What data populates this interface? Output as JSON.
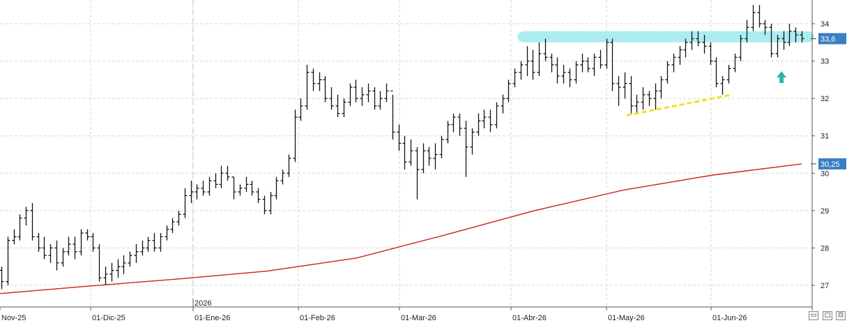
{
  "chart_data": {
    "type": "ohlc",
    "title": "",
    "xlabel": "",
    "ylabel": "",
    "ylim": [
      26.6,
      34.6
    ],
    "y_ticks": [
      "27",
      "28",
      "29",
      "30",
      "31",
      "32",
      "33",
      "34"
    ],
    "x_ticks": [
      "Nov-25",
      "01-Dic-25",
      "01-Ene-26",
      "01-Feb-26",
      "01-Mar-26",
      "01-Abr-26",
      "01-May-26",
      "01-Jun-26"
    ],
    "year_marker": "2026",
    "grid": true,
    "last_price_label": "33,6",
    "moving_average_label": "30,25",
    "colors": {
      "bars": "#111111",
      "moving_average": "#cc1f1f",
      "resistance_zone": "#a8ecef",
      "support_line": "#f2e21d",
      "arrow": "#2bb5b0",
      "badge": "#3a7fc4",
      "grid": "#d6d6d6"
    },
    "series": [
      {
        "type": "ohlc",
        "values": [
          [
            27.4,
            27.5,
            26.9,
            27.1
          ],
          [
            27.1,
            28.3,
            27.0,
            28.2
          ],
          [
            28.2,
            28.5,
            28.1,
            28.3
          ],
          [
            28.3,
            28.9,
            28.2,
            28.8
          ],
          [
            28.8,
            29.1,
            28.6,
            29.0
          ],
          [
            29.0,
            29.2,
            28.2,
            28.3
          ],
          [
            28.3,
            28.4,
            27.9,
            28.0
          ],
          [
            28.0,
            28.3,
            27.7,
            27.8
          ],
          [
            27.8,
            28.1,
            27.6,
            28.0
          ],
          [
            28.0,
            28.2,
            27.4,
            27.6
          ],
          [
            27.6,
            28.0,
            27.5,
            27.9
          ],
          [
            27.9,
            28.3,
            27.8,
            28.1
          ],
          [
            28.1,
            28.3,
            27.7,
            27.9
          ],
          [
            27.9,
            28.5,
            27.8,
            28.4
          ],
          [
            28.4,
            28.5,
            28.2,
            28.3
          ],
          [
            28.3,
            28.4,
            27.9,
            28.0
          ],
          [
            28.0,
            28.1,
            27.1,
            27.2
          ],
          [
            27.2,
            27.5,
            27.0,
            27.3
          ],
          [
            27.3,
            27.6,
            27.1,
            27.4
          ],
          [
            27.4,
            27.7,
            27.2,
            27.5
          ],
          [
            27.5,
            27.8,
            27.3,
            27.6
          ],
          [
            27.6,
            27.9,
            27.5,
            27.8
          ],
          [
            27.8,
            28.1,
            27.6,
            27.9
          ],
          [
            27.9,
            28.2,
            27.8,
            28.0
          ],
          [
            28.0,
            28.3,
            27.9,
            28.2
          ],
          [
            28.2,
            28.4,
            27.9,
            28.0
          ],
          [
            28.0,
            28.4,
            27.9,
            28.3
          ],
          [
            28.3,
            28.6,
            28.2,
            28.5
          ],
          [
            28.5,
            28.8,
            28.4,
            28.7
          ],
          [
            28.7,
            29.0,
            28.6,
            28.9
          ],
          [
            28.9,
            29.6,
            28.8,
            29.4
          ],
          [
            29.4,
            29.8,
            29.2,
            29.5
          ],
          [
            29.5,
            29.7,
            29.3,
            29.6
          ],
          [
            29.6,
            29.8,
            29.4,
            29.5
          ],
          [
            29.5,
            29.9,
            29.4,
            29.8
          ],
          [
            29.8,
            30.0,
            29.6,
            29.7
          ],
          [
            29.7,
            30.2,
            29.6,
            30.0
          ],
          [
            30.0,
            30.2,
            29.8,
            29.9
          ],
          [
            29.9,
            29.9,
            29.3,
            29.5
          ],
          [
            29.5,
            29.7,
            29.4,
            29.6
          ],
          [
            29.6,
            29.9,
            29.5,
            29.7
          ],
          [
            29.7,
            29.8,
            29.4,
            29.5
          ],
          [
            29.5,
            29.6,
            29.2,
            29.3
          ],
          [
            29.3,
            29.4,
            28.9,
            29.0
          ],
          [
            29.0,
            29.5,
            28.9,
            29.4
          ],
          [
            29.4,
            29.9,
            29.3,
            29.8
          ],
          [
            29.8,
            30.1,
            29.7,
            30.0
          ],
          [
            30.0,
            30.5,
            29.9,
            30.4
          ],
          [
            30.4,
            31.7,
            30.3,
            31.5
          ],
          [
            31.5,
            32.0,
            31.4,
            31.8
          ],
          [
            31.8,
            32.9,
            31.7,
            32.7
          ],
          [
            32.7,
            32.8,
            32.2,
            32.4
          ],
          [
            32.4,
            32.7,
            32.2,
            32.5
          ],
          [
            32.5,
            32.6,
            31.9,
            32.0
          ],
          [
            32.0,
            32.3,
            31.7,
            31.8
          ],
          [
            31.8,
            32.1,
            31.5,
            31.6
          ],
          [
            31.6,
            32.0,
            31.5,
            31.9
          ],
          [
            31.9,
            32.4,
            31.8,
            32.3
          ],
          [
            32.3,
            32.5,
            31.9,
            32.0
          ],
          [
            32.0,
            32.3,
            31.8,
            32.1
          ],
          [
            32.1,
            32.4,
            31.9,
            32.2
          ],
          [
            32.2,
            32.3,
            31.7,
            31.8
          ],
          [
            31.8,
            32.2,
            31.7,
            32.0
          ],
          [
            32.0,
            32.4,
            31.9,
            32.2
          ],
          [
            32.2,
            32.1,
            30.9,
            31.1
          ],
          [
            31.1,
            31.3,
            30.6,
            30.8
          ],
          [
            30.8,
            31.0,
            30.1,
            30.3
          ],
          [
            30.3,
            30.9,
            30.2,
            30.6
          ],
          [
            30.6,
            30.7,
            29.3,
            30.1
          ],
          [
            30.1,
            30.8,
            30.0,
            30.6
          ],
          [
            30.6,
            30.7,
            30.2,
            30.4
          ],
          [
            30.4,
            30.8,
            30.1,
            30.5
          ],
          [
            30.5,
            31.0,
            30.4,
            30.9
          ],
          [
            30.9,
            31.4,
            30.8,
            31.3
          ],
          [
            31.3,
            31.6,
            31.1,
            31.5
          ],
          [
            31.5,
            31.6,
            31.0,
            31.2
          ],
          [
            31.2,
            31.4,
            29.9,
            30.7
          ],
          [
            30.7,
            31.2,
            30.5,
            31.1
          ],
          [
            31.1,
            31.6,
            31.0,
            31.4
          ],
          [
            31.4,
            31.7,
            31.2,
            31.5
          ],
          [
            31.5,
            31.7,
            31.1,
            31.3
          ],
          [
            31.3,
            31.9,
            31.2,
            31.8
          ],
          [
            31.8,
            32.1,
            31.6,
            32.0
          ],
          [
            32.0,
            32.5,
            31.9,
            32.4
          ],
          [
            32.4,
            32.8,
            32.3,
            32.7
          ],
          [
            32.7,
            33.0,
            32.5,
            32.9
          ],
          [
            32.9,
            33.4,
            32.6,
            33.0
          ],
          [
            33.0,
            33.3,
            32.5,
            32.7
          ],
          [
            32.7,
            33.5,
            32.6,
            33.2
          ],
          [
            33.2,
            33.6,
            33.0,
            33.1
          ],
          [
            33.1,
            33.2,
            32.7,
            32.9
          ],
          [
            32.9,
            33.1,
            32.4,
            32.6
          ],
          [
            32.6,
            32.9,
            32.4,
            32.7
          ],
          [
            32.7,
            32.8,
            32.3,
            32.5
          ],
          [
            32.5,
            33.0,
            32.4,
            32.9
          ],
          [
            32.9,
            33.2,
            32.7,
            33.0
          ],
          [
            33.0,
            33.1,
            32.7,
            32.8
          ],
          [
            32.8,
            33.2,
            32.6,
            33.1
          ],
          [
            33.1,
            33.3,
            32.8,
            32.9
          ],
          [
            32.9,
            33.6,
            32.8,
            33.5
          ],
          [
            33.5,
            33.6,
            32.2,
            32.4
          ],
          [
            32.4,
            32.6,
            31.8,
            32.3
          ],
          [
            32.3,
            32.7,
            32.0,
            32.4
          ],
          [
            32.4,
            32.6,
            31.6,
            31.8
          ],
          [
            31.8,
            32.1,
            31.6,
            31.9
          ],
          [
            31.9,
            32.3,
            31.7,
            32.1
          ],
          [
            32.1,
            32.2,
            31.8,
            32.0
          ],
          [
            32.0,
            32.4,
            31.7,
            32.2
          ],
          [
            32.2,
            32.6,
            32.0,
            32.5
          ],
          [
            32.5,
            33.0,
            32.4,
            32.9
          ],
          [
            32.9,
            33.2,
            32.7,
            33.1
          ],
          [
            33.1,
            33.4,
            32.9,
            33.3
          ],
          [
            33.3,
            33.6,
            33.1,
            33.5
          ],
          [
            33.5,
            33.8,
            33.3,
            33.6
          ],
          [
            33.6,
            33.8,
            33.4,
            33.5
          ],
          [
            33.5,
            33.7,
            33.2,
            33.4
          ],
          [
            33.4,
            33.5,
            32.9,
            33.0
          ],
          [
            33.0,
            33.1,
            32.3,
            32.4
          ],
          [
            32.4,
            32.6,
            32.1,
            32.5
          ],
          [
            32.5,
            32.9,
            32.4,
            32.8
          ],
          [
            32.8,
            33.2,
            32.7,
            33.1
          ],
          [
            33.1,
            33.7,
            33.0,
            33.6
          ],
          [
            33.6,
            34.1,
            33.5,
            33.9
          ],
          [
            33.9,
            34.5,
            33.8,
            34.3
          ],
          [
            34.3,
            34.5,
            33.9,
            34.0
          ],
          [
            34.0,
            34.1,
            33.7,
            33.9
          ],
          [
            33.9,
            34.0,
            33.1,
            33.2
          ],
          [
            33.2,
            33.7,
            33.1,
            33.6
          ],
          [
            33.6,
            33.8,
            33.3,
            33.5
          ],
          [
            33.5,
            34.0,
            33.4,
            33.8
          ],
          [
            33.8,
            33.9,
            33.5,
            33.7
          ],
          [
            33.7,
            33.8,
            33.5,
            33.6
          ]
        ]
      },
      {
        "name": "",
        "type": "line",
        "values": [
          26.78,
          26.98,
          27.17,
          27.38,
          27.73,
          28.35,
          29.0,
          29.55,
          29.95,
          30.25
        ]
      }
    ],
    "annotations": {
      "resistance_zone": [
        33.5,
        33.8
      ],
      "support_trendline": {
        "from": 31.55,
        "to": 32.1
      },
      "arrow": "up"
    }
  }
}
